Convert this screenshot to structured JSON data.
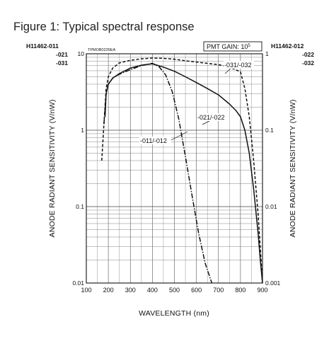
{
  "figure_title": "Figure 1: Typical spectral response",
  "chart_data": {
    "type": "line",
    "title": "Figure 1: Typical spectral response",
    "code": "TPMOB0235EA",
    "xlabel": "WAVELENGTH (nm)",
    "ylabel_left": "ANODE RADIANT SENSITIVITY (V/nW)",
    "ylabel_right": "ANODE RADIANT SENSITIVITY (V/nW)",
    "xlim": [
      100,
      900
    ],
    "x_ticks": [
      "100",
      "200",
      "300",
      "400",
      "500",
      "600",
      "700",
      "800",
      "900"
    ],
    "ylim_left": [
      0.01,
      10
    ],
    "ylim_right": [
      0.001,
      1
    ],
    "y_scale": "log",
    "y_ticks_left": [
      "0.01",
      "0.1",
      "1",
      "10"
    ],
    "y_ticks_right": [
      "0.001",
      "0.01",
      "0.1",
      "1"
    ],
    "grid": true,
    "gain_label": "PMT GAIN: 10",
    "gain_exp": "5",
    "left_header": [
      "H11462-011",
      "-021",
      "-031"
    ],
    "right_header": [
      "H11462-012",
      "-022",
      "-032"
    ],
    "series": [
      {
        "name": "-011/-012",
        "style": "dash-dot",
        "x": [
          180,
          190,
          200,
          220,
          250,
          300,
          350,
          400,
          430,
          460,
          490,
          520,
          550,
          580,
          610,
          640,
          670
        ],
        "y": [
          1.2,
          3.0,
          4.0,
          4.8,
          5.4,
          6.2,
          7.0,
          7.5,
          6.8,
          5.3,
          3.2,
          1.4,
          0.45,
          0.14,
          0.045,
          0.018,
          0.01
        ]
      },
      {
        "name": "-021/-022",
        "style": "solid",
        "x": [
          185,
          190,
          200,
          220,
          250,
          300,
          350,
          400,
          450,
          500,
          550,
          600,
          650,
          700,
          750,
          780,
          800,
          820,
          840,
          860,
          880,
          890,
          900
        ],
        "y": [
          1.5,
          3.0,
          4.0,
          4.8,
          5.5,
          6.5,
          7.1,
          7.4,
          6.7,
          5.9,
          5.0,
          4.2,
          3.5,
          2.9,
          2.2,
          1.8,
          1.5,
          1.0,
          0.5,
          0.17,
          0.045,
          0.02,
          0.01
        ]
      },
      {
        "name": "-031/-032",
        "style": "dashed",
        "x": [
          170,
          180,
          190,
          200,
          220,
          250,
          300,
          350,
          400,
          450,
          500,
          550,
          600,
          650,
          700,
          750,
          800,
          820,
          840,
          860,
          880,
          900
        ],
        "y": [
          0.4,
          1.2,
          3.5,
          5.0,
          6.5,
          7.6,
          8.2,
          8.6,
          8.8,
          8.7,
          8.5,
          8.1,
          7.8,
          7.5,
          7.2,
          6.7,
          5.8,
          3.5,
          1.5,
          0.4,
          0.08,
          0.01
        ]
      }
    ]
  }
}
